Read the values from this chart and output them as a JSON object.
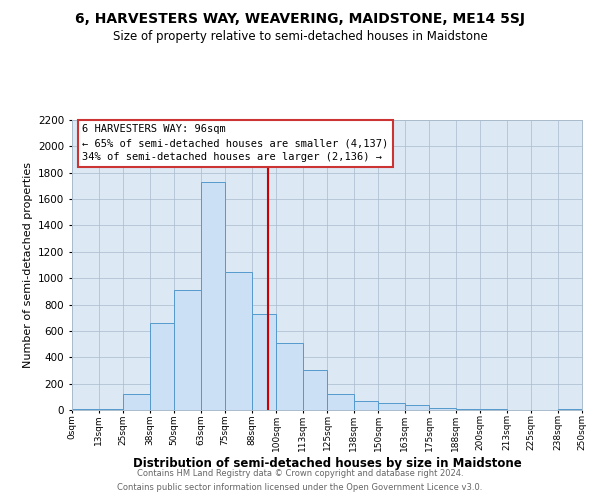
{
  "title": "6, HARVESTERS WAY, WEAVERING, MAIDSTONE, ME14 5SJ",
  "subtitle": "Size of property relative to semi-detached houses in Maidstone",
  "xlabel": "Distribution of semi-detached houses by size in Maidstone",
  "ylabel": "Number of semi-detached properties",
  "footer_line1": "Contains HM Land Registry data © Crown copyright and database right 2024.",
  "footer_line2": "Contains public sector information licensed under the Open Government Licence v3.0.",
  "annotation_title": "6 HARVESTERS WAY: 96sqm",
  "annotation_line1": "← 65% of semi-detached houses are smaller (4,137)",
  "annotation_line2": "34% of semi-detached houses are larger (2,136) →",
  "bar_color": "#cce0f5",
  "bar_edge_color": "#5599cc",
  "vline_color": "#cc0000",
  "vline_x": 96,
  "background_color": "#ffffff",
  "plot_background_color": "#dde8f5",
  "bins": [
    0,
    13,
    25,
    38,
    50,
    63,
    75,
    88,
    100,
    113,
    125,
    138,
    150,
    163,
    175,
    188,
    200,
    213,
    225,
    238,
    250
  ],
  "bin_labels": [
    "0sqm",
    "13sqm",
    "25sqm",
    "38sqm",
    "50sqm",
    "63sqm",
    "75sqm",
    "88sqm",
    "100sqm",
    "113sqm",
    "125sqm",
    "138sqm",
    "150sqm",
    "163sqm",
    "175sqm",
    "188sqm",
    "200sqm",
    "213sqm",
    "225sqm",
    "238sqm",
    "250sqm"
  ],
  "bar_heights": [
    5,
    10,
    120,
    660,
    910,
    1730,
    1050,
    730,
    510,
    300,
    120,
    70,
    50,
    40,
    15,
    5,
    5,
    0,
    0,
    5
  ],
  "ylim": [
    0,
    2200
  ],
  "yticks": [
    0,
    200,
    400,
    600,
    800,
    1000,
    1200,
    1400,
    1600,
    1800,
    2000,
    2200
  ],
  "grid_color": "#aabbcc",
  "title_fontsize": 10,
  "subtitle_fontsize": 8.5
}
